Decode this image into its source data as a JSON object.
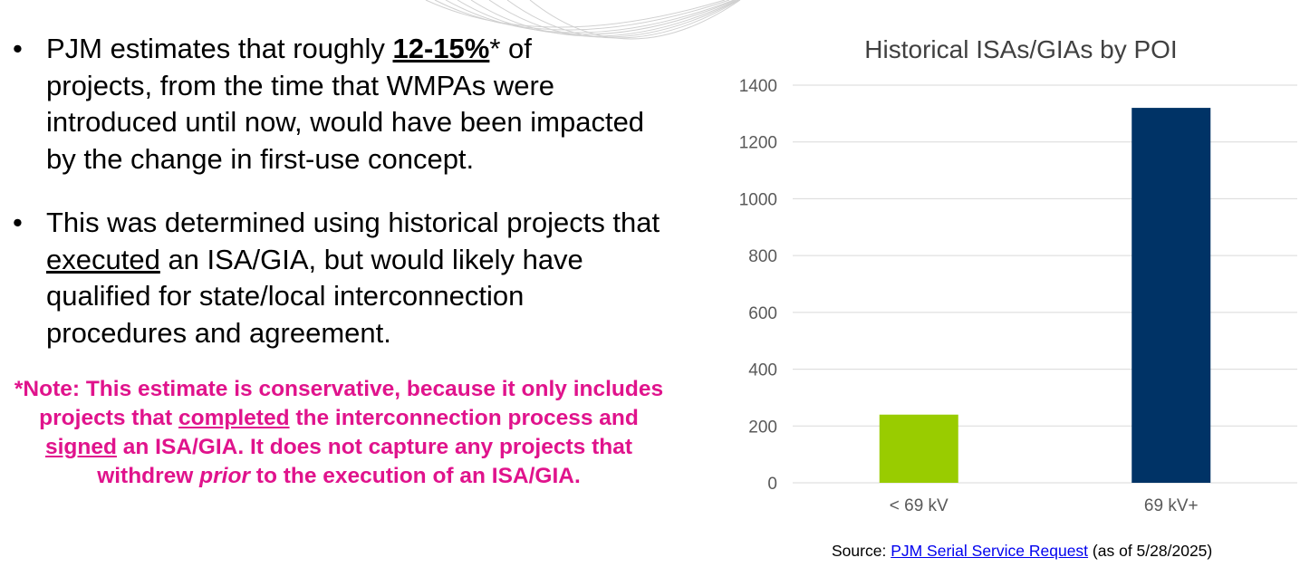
{
  "bullets": [
    {
      "dot": "•",
      "line1_pre": "PJM estimates that roughly ",
      "line1_emph": "12-15%",
      "line1_post": "* of",
      "rest": "projects, from the time that WMPAs were introduced until now, would have been impacted by the change in first-use concept."
    },
    {
      "dot": "•",
      "pre": "This was determined using historical projects that ",
      "emph": "executed",
      "post": " an ISA/GIA, but would likely have qualified for state/local interconnection procedures and agreement."
    }
  ],
  "note": {
    "part1": "*Note: This estimate is conservative, because it only includes projects that ",
    "emph1": "completed",
    "part2": " the interconnection process and ",
    "emph2": "signed",
    "part3": " an ISA/GIA. It does not capture any projects that withdrew ",
    "emph3": "prior",
    "part4": " to the execution of an ISA/GIA."
  },
  "chart_data": {
    "type": "bar",
    "title": "Historical ISAs/GIAs by POI",
    "categories": [
      "< 69 kV",
      "69 kV+"
    ],
    "values": [
      240,
      1320
    ],
    "bar_colors": [
      "#99cc00",
      "#003366"
    ],
    "ylim": [
      0,
      1400
    ],
    "yticks": [
      0,
      200,
      400,
      600,
      800,
      1000,
      1200,
      1400
    ],
    "xlabel": "",
    "ylabel": "",
    "grid": true,
    "legend": "none"
  },
  "source": {
    "prefix": "Source: ",
    "link_text": "PJM Serial Service Request",
    "suffix": " (as of 5/28/2025)"
  }
}
